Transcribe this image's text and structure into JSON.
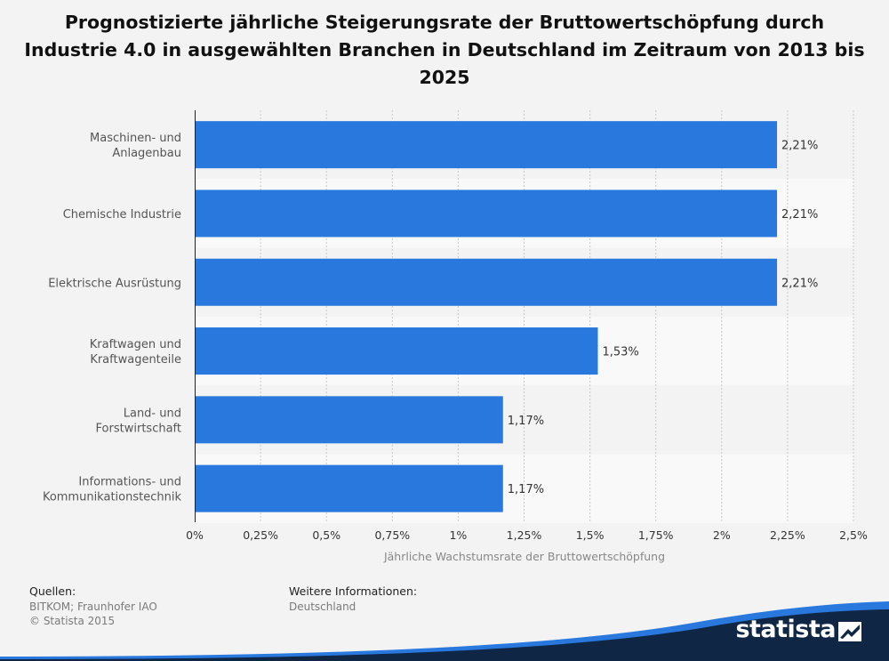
{
  "chart_data": {
    "type": "bar",
    "orientation": "horizontal",
    "title": "Prognostizierte jährliche Steigerungsrate der Bruttowertschöpfung durch Industrie 4.0 in ausgewählten Branchen in Deutschland im Zeitraum von 2013 bis 2025",
    "xlabel": "Jährliche Wachstumsrate der Bruttowertschöpfung",
    "ylabel": "",
    "categories": [
      [
        "Maschinen- und",
        "Anlagenbau"
      ],
      [
        "Chemische Industrie"
      ],
      [
        "Elektrische Ausrüstung"
      ],
      [
        "Kraftwagen und",
        "Kraftwagenteile"
      ],
      [
        "Land- und",
        "Forstwirtschaft"
      ],
      [
        "Informations- und",
        "Kommunikationstechnik"
      ]
    ],
    "values": [
      2.21,
      2.21,
      2.21,
      1.53,
      1.17,
      1.17
    ],
    "value_labels": [
      "2,21%",
      "2,21%",
      "2,21%",
      "1,53%",
      "1,17%",
      "1,17%"
    ],
    "xlim": [
      0,
      2.5
    ],
    "ticks": [
      0,
      0.25,
      0.5,
      0.75,
      1,
      1.25,
      1.5,
      1.75,
      2,
      2.25,
      2.5
    ],
    "tick_labels": [
      "0%",
      "0,25%",
      "0,5%",
      "0,75%",
      "1%",
      "1,25%",
      "1,5%",
      "1,75%",
      "2%",
      "2,25%",
      "2,5%"
    ],
    "grid": true,
    "legend": "none",
    "colors": {
      "bar": "#2878de",
      "band_light": "#f9f9f9",
      "band_dark": "#f3f3f3"
    }
  },
  "footer": {
    "sources_heading": "Quellen:",
    "sources_line1": "BITKOM; Fraunhofer IAO",
    "sources_line2": "© Statista 2015",
    "info_heading": "Weitere Informationen:",
    "info_line1": "Deutschland"
  },
  "brand": {
    "logo_text": "statista",
    "logo_icon": "statista-logo-icon",
    "colors": {
      "dark": "#0f2645",
      "accent": "#2878de"
    }
  }
}
